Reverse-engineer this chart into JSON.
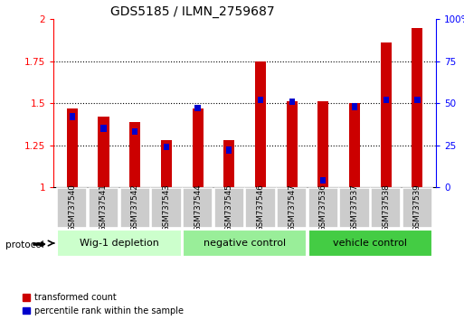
{
  "title": "GDS5185 / ILMN_2759687",
  "samples": [
    "GSM737540",
    "GSM737541",
    "GSM737542",
    "GSM737543",
    "GSM737544",
    "GSM737545",
    "GSM737546",
    "GSM737547",
    "GSM737536",
    "GSM737537",
    "GSM737538",
    "GSM737539"
  ],
  "red_values": [
    1.47,
    1.42,
    1.39,
    1.28,
    1.47,
    1.28,
    1.75,
    1.51,
    1.51,
    1.5,
    1.86,
    1.95
  ],
  "blue_pct": [
    42,
    35,
    33,
    24,
    47,
    22,
    52,
    51,
    4,
    48,
    52,
    52
  ],
  "ylim_left": [
    1.0,
    2.0
  ],
  "ylim_right": [
    0.0,
    100.0
  ],
  "yticks_left": [
    1.0,
    1.25,
    1.5,
    1.75,
    2.0
  ],
  "ytick_labels_left": [
    "1",
    "1.25",
    "1.5",
    "1.75",
    "2"
  ],
  "yticks_right": [
    0,
    25,
    50,
    75,
    100
  ],
  "ytick_labels_right": [
    "0",
    "25",
    "50",
    "75",
    "100%"
  ],
  "groups": [
    {
      "label": "Wig-1 depletion",
      "start": 0,
      "end": 3,
      "color": "#ccffcc"
    },
    {
      "label": "negative control",
      "start": 4,
      "end": 7,
      "color": "#99ee99"
    },
    {
      "label": "vehicle control",
      "start": 8,
      "end": 11,
      "color": "#44cc44"
    }
  ],
  "red_color": "#cc0000",
  "blue_color": "#0000cc",
  "protocol_label": "protocol",
  "legend_red": "transformed count",
  "legend_blue": "percentile rank within the sample",
  "title_fontsize": 10,
  "tick_fontsize": 7.5,
  "sample_fontsize": 6.2,
  "group_fontsize": 8
}
